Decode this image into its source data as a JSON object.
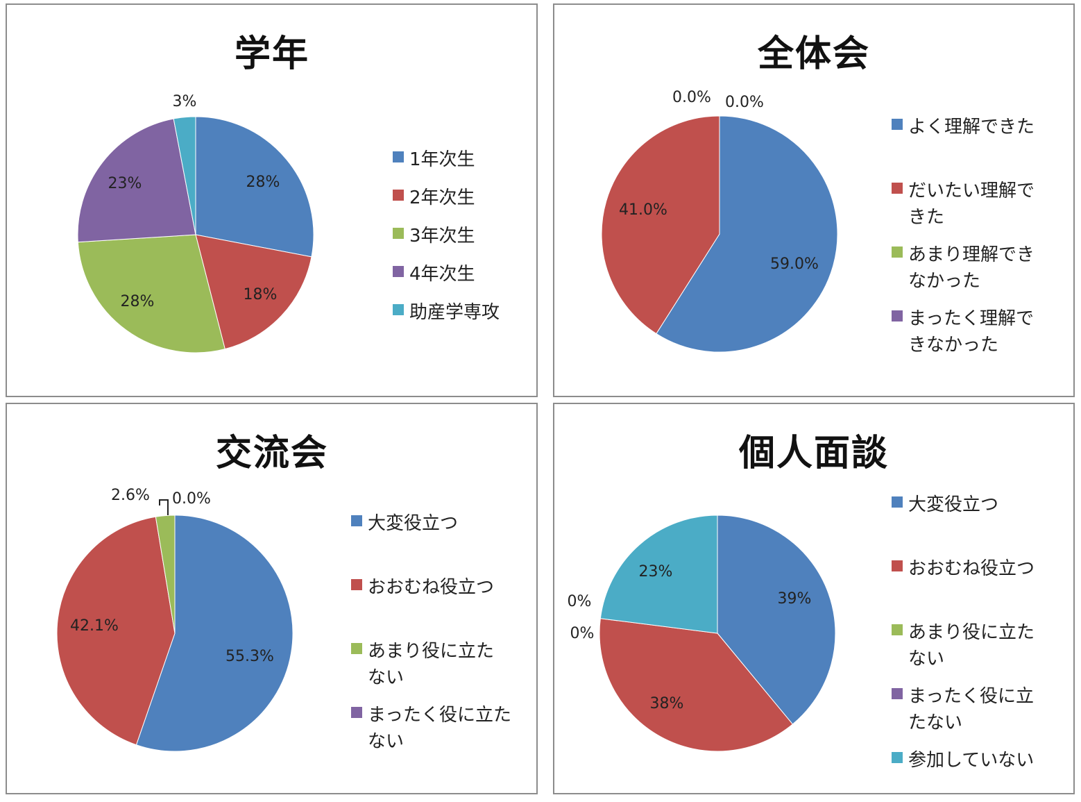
{
  "chart_data": [
    {
      "type": "pie",
      "title": "学年",
      "categories": [
        "1年次生",
        "2年次生",
        "3年次生",
        "4年次生",
        "助産学専攻"
      ],
      "values": [
        28,
        18,
        28,
        23,
        3
      ],
      "labels": [
        "28%",
        "18%",
        "28%",
        "23%",
        "3%"
      ],
      "colors": [
        "#4f81bd",
        "#c0504d",
        "#9bbb59",
        "#8064a2",
        "#4bacc6"
      ],
      "legend": "right"
    },
    {
      "type": "pie",
      "title": "全体会",
      "categories": [
        "よく理解できた",
        "だいたい理解できた",
        "あまり理解できなかった",
        "まったく理解できなかった"
      ],
      "legend_text": [
        "よく理解できた",
        "だいたい理解で\nきた",
        "あまり理解でき\nなかった",
        "まったく理解で\nきなかった"
      ],
      "values": [
        59.0,
        41.0,
        0.0,
        0.0
      ],
      "labels": [
        "59.0%",
        "41.0%",
        "0.0%",
        "0.0%"
      ],
      "colors": [
        "#4f81bd",
        "#c0504d",
        "#9bbb59",
        "#8064a2"
      ],
      "legend": "right"
    },
    {
      "type": "pie",
      "title": "交流会",
      "categories": [
        "大変役立つ",
        "おおむね役立つ",
        "あまり役に立たない",
        "まったく役に立たない"
      ],
      "legend_text": [
        "大変役立つ",
        "おおむね役立つ",
        "あまり役に立た\nない",
        "まったく役に立た\nない"
      ],
      "values": [
        55.3,
        42.1,
        2.6,
        0.0
      ],
      "labels": [
        "55.3%",
        "42.1%",
        "2.6%",
        "0.0%"
      ],
      "colors": [
        "#4f81bd",
        "#c0504d",
        "#9bbb59",
        "#8064a2"
      ],
      "legend": "right"
    },
    {
      "type": "pie",
      "title": "個人面談",
      "categories": [
        "大変役立つ",
        "おおむね役立つ",
        "あまり役に立たない",
        "まったく役に立たない",
        "参加していない"
      ],
      "legend_text": [
        "大変役立つ",
        "おおむね役立つ",
        "あまり役に立た\nない",
        "まったく役に立\nたない",
        "参加していない"
      ],
      "values": [
        39,
        38,
        0,
        0,
        23
      ],
      "labels": [
        "39%",
        "38%",
        "0%",
        "0%",
        "23%"
      ],
      "colors": [
        "#4f81bd",
        "#c0504d",
        "#9bbb59",
        "#8064a2",
        "#4bacc6"
      ],
      "legend": "right"
    }
  ]
}
